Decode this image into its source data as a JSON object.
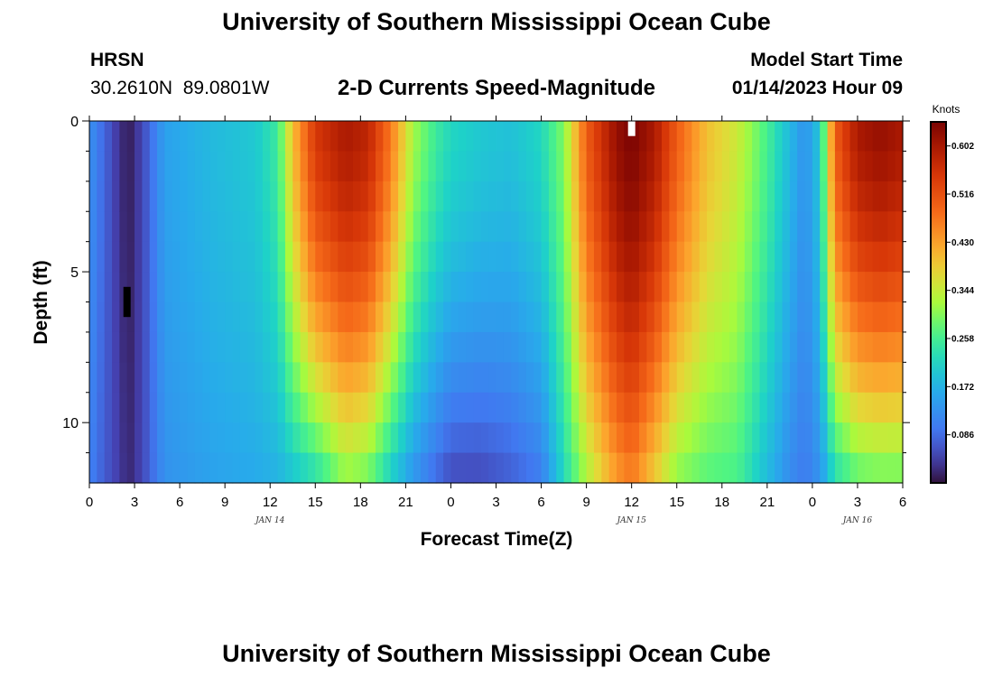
{
  "header": {
    "title": "University of Southern Mississippi Ocean Cube",
    "station": "HRSN",
    "coords": "30.2610N  89.0801W",
    "subtitle": "2-D Currents Speed-Magnitude",
    "model_start_label": "Model Start Time",
    "model_start_time": "01/14/2023 Hour 09"
  },
  "footer": {
    "title": "University of Southern Mississippi Ocean Cube"
  },
  "chart_data": {
    "type": "heatmap",
    "xlabel": "Forecast Time(Z)",
    "ylabel": "Depth (ft)",
    "x_range_hours": [
      0,
      54
    ],
    "x_ticks": [
      {
        "h": 0,
        "label": "0"
      },
      {
        "h": 3,
        "label": "3"
      },
      {
        "h": 6,
        "label": "6"
      },
      {
        "h": 9,
        "label": "9"
      },
      {
        "h": 12,
        "label": "12"
      },
      {
        "h": 15,
        "label": "15"
      },
      {
        "h": 18,
        "label": "18"
      },
      {
        "h": 21,
        "label": "21"
      },
      {
        "h": 24,
        "label": "0"
      },
      {
        "h": 27,
        "label": "3"
      },
      {
        "h": 30,
        "label": "6"
      },
      {
        "h": 33,
        "label": "9"
      },
      {
        "h": 36,
        "label": "12"
      },
      {
        "h": 39,
        "label": "15"
      },
      {
        "h": 42,
        "label": "18"
      },
      {
        "h": 45,
        "label": "21"
      },
      {
        "h": 48,
        "label": "0"
      },
      {
        "h": 51,
        "label": "3"
      },
      {
        "h": 54,
        "label": "6"
      }
    ],
    "day_labels": [
      {
        "h": 12,
        "label": "JAN 14"
      },
      {
        "h": 36,
        "label": "JAN 15"
      },
      {
        "h": 51,
        "label": "JAN 16"
      }
    ],
    "y_range": [
      0,
      12
    ],
    "y_ticks": [
      {
        "v": 0,
        "label": "0"
      },
      {
        "v": 5,
        "label": "5"
      },
      {
        "v": 10,
        "label": "10"
      }
    ],
    "y_minor_ticks": [
      1,
      2,
      3,
      4,
      6,
      7,
      8,
      9,
      11
    ],
    "colorbar": {
      "unit": "Knots",
      "min": 0.0,
      "max": 0.645,
      "ticks": [
        0.602,
        0.516,
        0.43,
        0.344,
        0.258,
        0.172,
        0.086
      ],
      "tick_labels": [
        "0.602",
        "0.516",
        "0.430",
        "0.344",
        "0.258",
        "0.172",
        "0.086"
      ]
    },
    "grid": false,
    "depth_levels": 12,
    "time_step_hours": 0.5,
    "speed_timeseries": [
      {
        "t": 0,
        "surface": 0.13,
        "bottom": 0.11
      },
      {
        "t": 1,
        "surface": 0.08,
        "bottom": 0.07
      },
      {
        "t": 2,
        "surface": 0.03,
        "bottom": 0.04
      },
      {
        "t": 2.6,
        "surface": 0.01,
        "bottom": 0.02
      },
      {
        "t": 3.5,
        "surface": 0.05,
        "bottom": 0.05
      },
      {
        "t": 5,
        "surface": 0.15,
        "bottom": 0.13
      },
      {
        "t": 8,
        "surface": 0.18,
        "bottom": 0.15
      },
      {
        "t": 11,
        "surface": 0.2,
        "bottom": 0.16
      },
      {
        "t": 12.5,
        "surface": 0.25,
        "bottom": 0.17
      },
      {
        "t": 13.5,
        "surface": 0.4,
        "bottom": 0.19
      },
      {
        "t": 15,
        "surface": 0.55,
        "bottom": 0.22
      },
      {
        "t": 17,
        "surface": 0.6,
        "bottom": 0.3
      },
      {
        "t": 18.5,
        "surface": 0.58,
        "bottom": 0.28
      },
      {
        "t": 20,
        "surface": 0.47,
        "bottom": 0.2
      },
      {
        "t": 21.5,
        "surface": 0.32,
        "bottom": 0.13
      },
      {
        "t": 23,
        "surface": 0.25,
        "bottom": 0.08
      },
      {
        "t": 24,
        "surface": 0.22,
        "bottom": 0.05
      },
      {
        "t": 26,
        "surface": 0.2,
        "bottom": 0.05
      },
      {
        "t": 28,
        "surface": 0.19,
        "bottom": 0.07
      },
      {
        "t": 30,
        "surface": 0.22,
        "bottom": 0.1
      },
      {
        "t": 31.5,
        "surface": 0.3,
        "bottom": 0.22
      },
      {
        "t": 33,
        "surface": 0.5,
        "bottom": 0.32
      },
      {
        "t": 35,
        "surface": 0.62,
        "bottom": 0.43
      },
      {
        "t": 36,
        "surface": 0.645,
        "bottom": 0.46
      },
      {
        "t": 37.5,
        "surface": 0.6,
        "bottom": 0.38
      },
      {
        "t": 39,
        "surface": 0.5,
        "bottom": 0.3
      },
      {
        "t": 41,
        "surface": 0.4,
        "bottom": 0.27
      },
      {
        "t": 43,
        "surface": 0.35,
        "bottom": 0.26
      },
      {
        "t": 45,
        "surface": 0.26,
        "bottom": 0.18
      },
      {
        "t": 46.5,
        "surface": 0.18,
        "bottom": 0.12
      },
      {
        "t": 47.5,
        "surface": 0.13,
        "bottom": 0.1
      },
      {
        "t": 48.5,
        "surface": 0.2,
        "bottom": 0.13
      },
      {
        "t": 49.5,
        "surface": 0.5,
        "bottom": 0.22
      },
      {
        "t": 51,
        "surface": 0.6,
        "bottom": 0.27
      },
      {
        "t": 52.5,
        "surface": 0.62,
        "bottom": 0.28
      },
      {
        "t": 54,
        "surface": 0.6,
        "bottom": 0.28
      }
    ],
    "markers": [
      {
        "t": 2.5,
        "depth_from": 5.5,
        "depth_to": 6.5,
        "color": "#000000"
      },
      {
        "t": 36,
        "depth_from": 0,
        "depth_to": 0.5,
        "color": "#ffffff"
      }
    ]
  }
}
